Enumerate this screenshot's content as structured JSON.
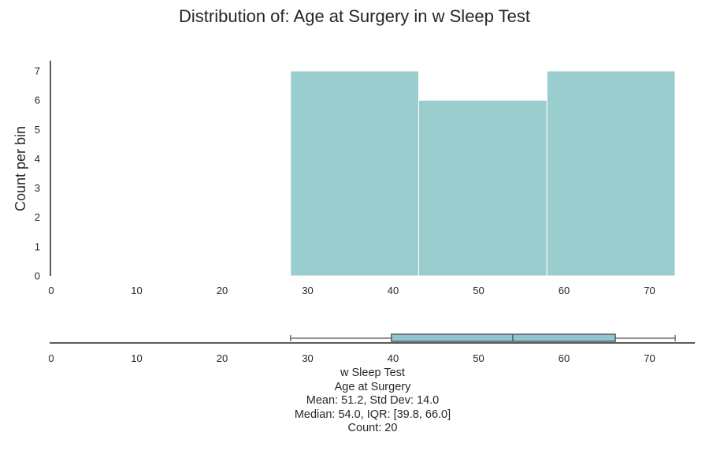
{
  "title": "Distribution of: Age at Surgery in w Sleep Test",
  "chart_data": [
    {
      "type": "bar",
      "title": "Distribution of: Age at Surgery in w Sleep Test",
      "ylabel": "Count per bin",
      "xlabel": "",
      "xlim": [
        0,
        75.3
      ],
      "ylim": [
        0,
        7.35
      ],
      "x_ticks": [
        0,
        10,
        20,
        30,
        40,
        50,
        60,
        70
      ],
      "y_ticks": [
        0,
        1,
        2,
        3,
        4,
        5,
        6,
        7
      ],
      "bins": [
        {
          "start": 28,
          "end": 43,
          "count": 7
        },
        {
          "start": 43,
          "end": 58,
          "count": 6
        },
        {
          "start": 58,
          "end": 73,
          "count": 7
        }
      ],
      "bar_color": "#9ACDCE",
      "grid": false
    },
    {
      "type": "box",
      "orientation": "horizontal",
      "xlim": [
        0,
        75.3
      ],
      "x_ticks": [
        0,
        10,
        20,
        30,
        40,
        50,
        60,
        70
      ],
      "min": 28,
      "q1": 39.8,
      "median": 54.0,
      "q3": 66.0,
      "max": 73,
      "box_color": "#8EC6D3"
    }
  ],
  "caption": {
    "group": "w Sleep Test",
    "variable": "Age at Surgery",
    "stats1": "Mean: 51.2, Std Dev: 14.0",
    "stats2": "Median: 54.0, IQR: [39.8, 66.0]",
    "count": "Count: 20"
  }
}
